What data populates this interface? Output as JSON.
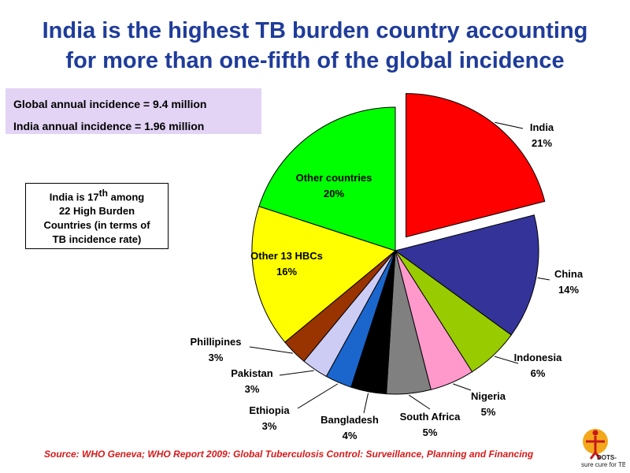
{
  "title_line1": "India is the highest TB burden country accounting",
  "title_line2": "for more than one-fifth of the global incidence",
  "stats": {
    "global": "Global annual incidence = 9.4 million",
    "india": "India annual incidence = 1.96 million"
  },
  "rank_note": {
    "line1_pre": "India is 17",
    "line1_sup": "th",
    "line1_post": " among",
    "line2": "22 High Burden",
    "line3": "Countries (in terms of",
    "line4": "TB incidence rate)"
  },
  "source": "Source: WHO Geneva; WHO Report 2009: Global Tuberculosis Control: Surveillance, Planning and Financing",
  "logo": {
    "line1": "DOTS-",
    "line2": "sure cure for TB."
  },
  "chart_data": {
    "type": "pie",
    "title": "",
    "slices": [
      {
        "label": "India",
        "value": 21,
        "value_label": "21%",
        "color": "#ff0000"
      },
      {
        "label": "China",
        "value": 14,
        "value_label": "14%",
        "color": "#333399"
      },
      {
        "label": "Indonesia",
        "value": 6,
        "value_label": "6%",
        "color": "#99cc00"
      },
      {
        "label": "Nigeria",
        "value": 5,
        "value_label": "5%",
        "color": "#ff99cc"
      },
      {
        "label": "South Africa",
        "value": 5,
        "value_label": "5%",
        "color": "#808080"
      },
      {
        "label": "Bangladesh",
        "value": 4,
        "value_label": "4%",
        "color": "#000000"
      },
      {
        "label": "Ethiopia",
        "value": 3,
        "value_label": "3%",
        "color": "#1a66cc"
      },
      {
        "label": "Pakistan",
        "value": 3,
        "value_label": "3%",
        "color": "#ccccf5"
      },
      {
        "label": "Phillipines",
        "value": 3,
        "value_label": "3%",
        "color": "#993300"
      },
      {
        "label": "Other 13 HBCs",
        "value": 16,
        "value_label": "16%",
        "color": "#ffff00"
      },
      {
        "label": "Other countries",
        "value": 20,
        "value_label": "20%",
        "color": "#00ff00"
      }
    ],
    "exploded_slice": "India"
  }
}
